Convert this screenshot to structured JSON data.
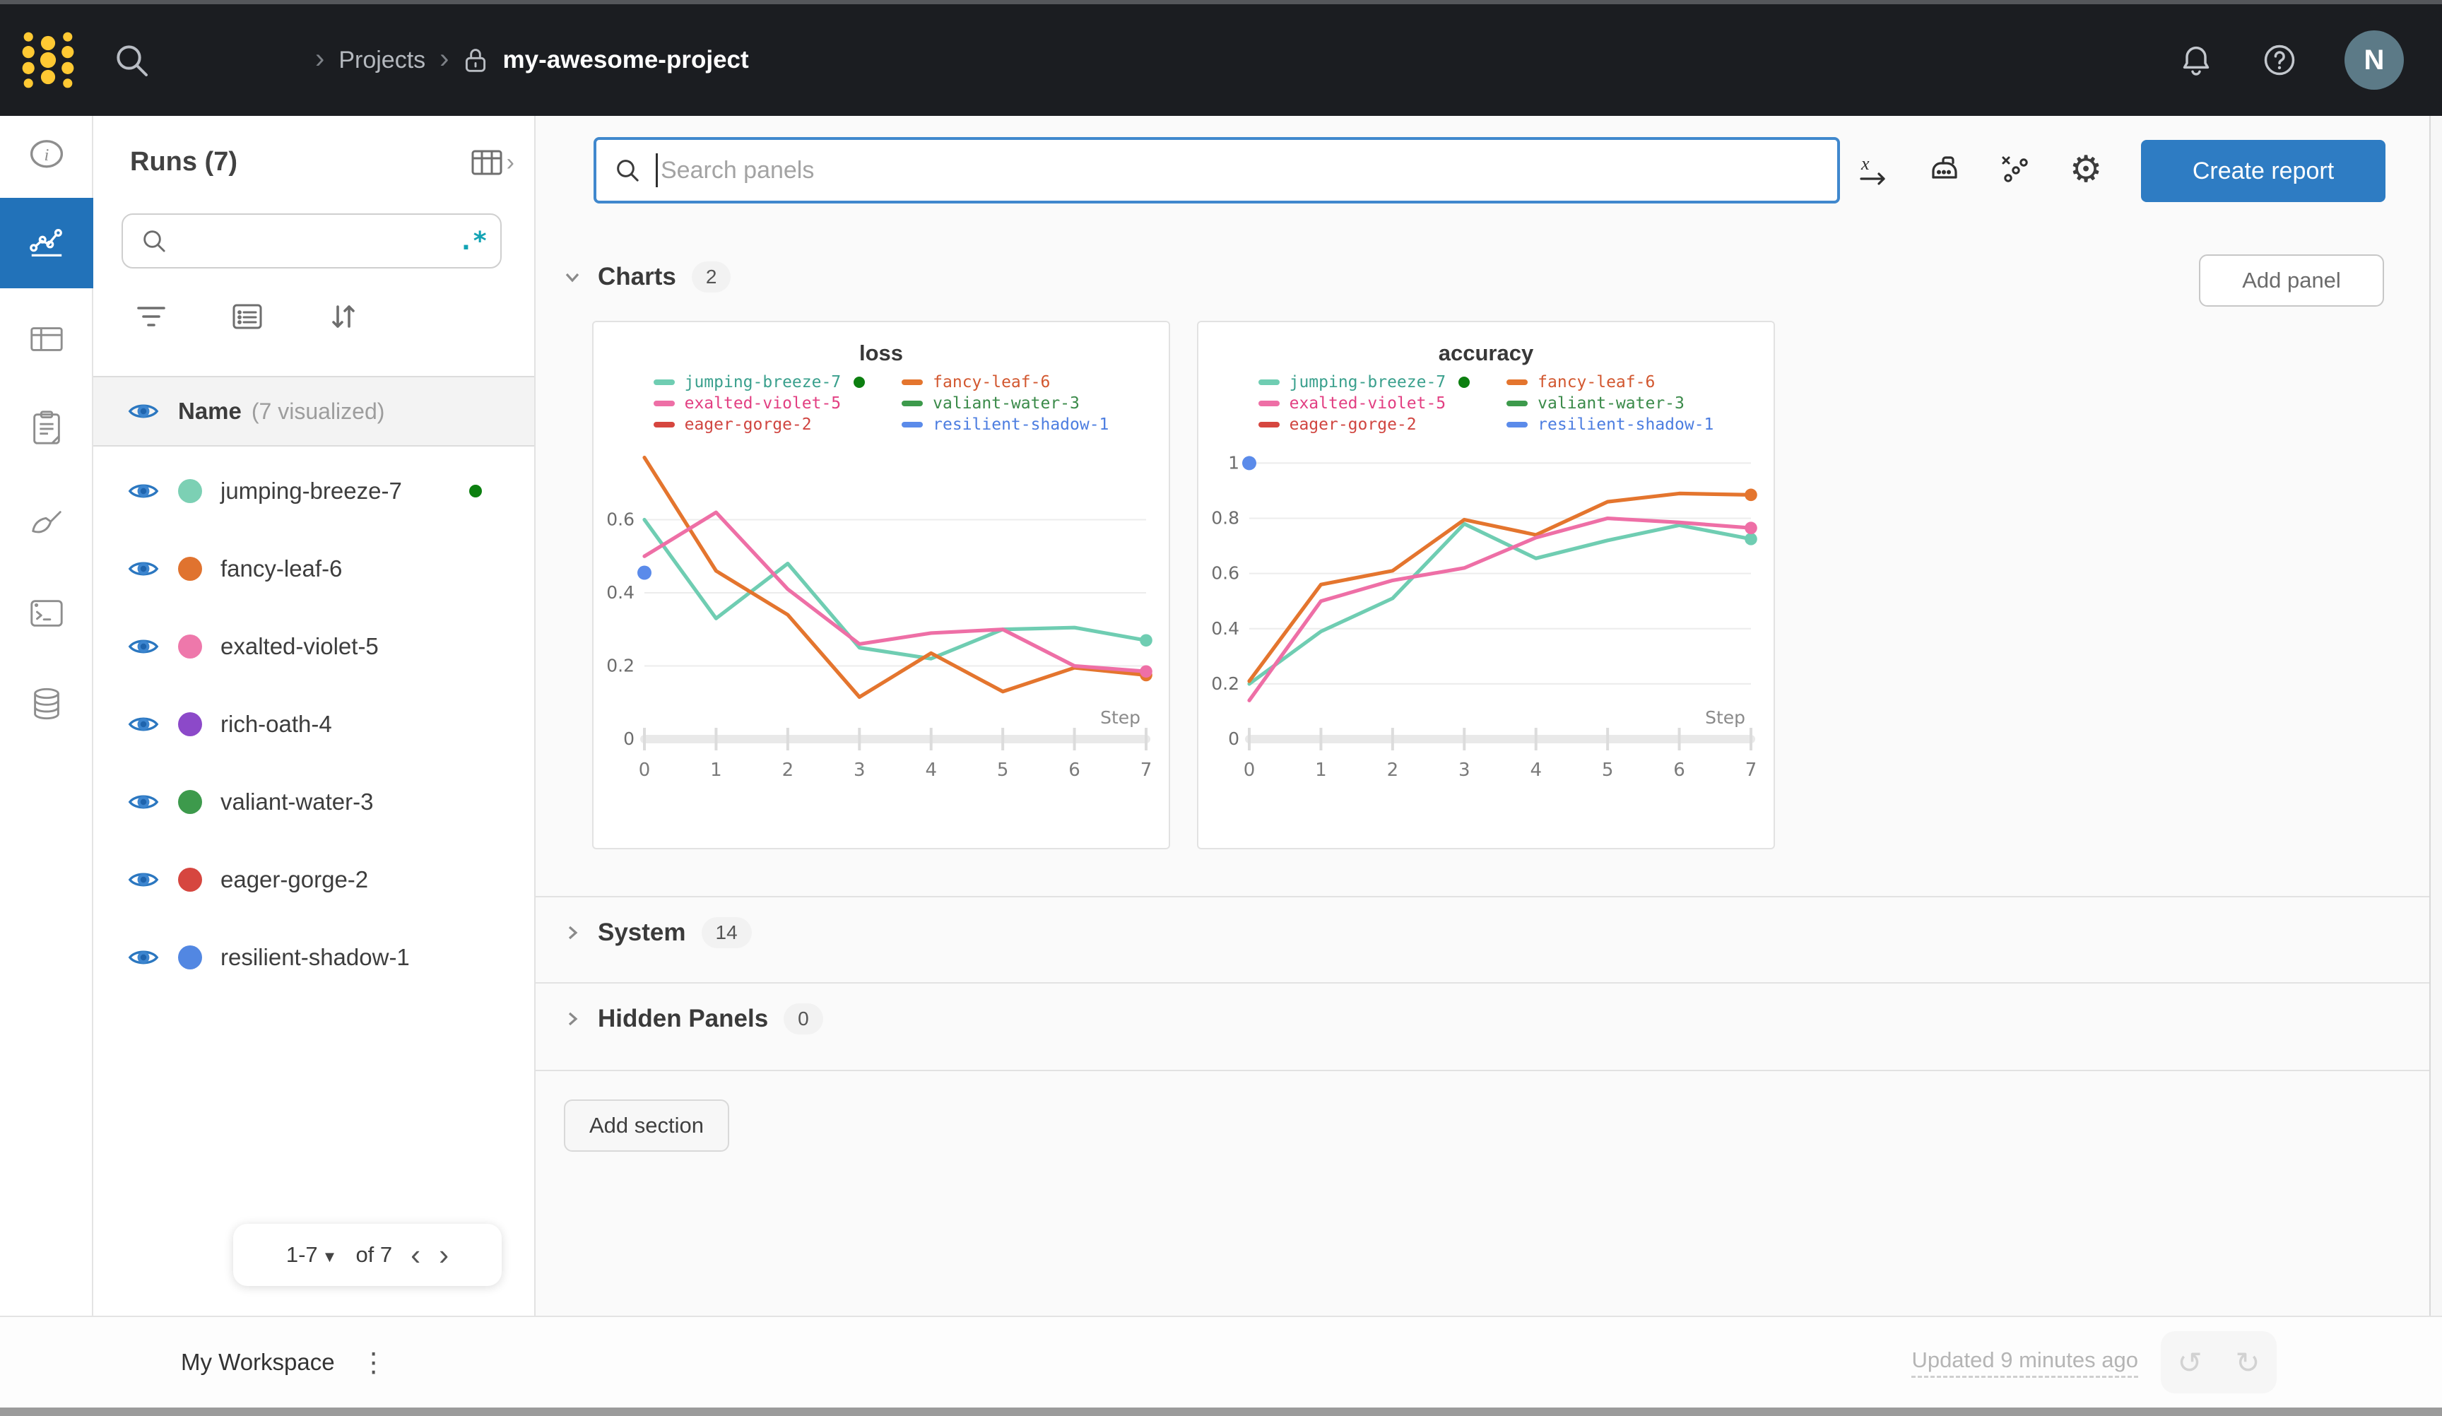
{
  "topbar": {
    "breadcrumb": {
      "projects": "Projects",
      "project": "my-awesome-project"
    },
    "avatar_initial": "N"
  },
  "sidebar": {
    "title": "Runs (7)",
    "name_header": "Name",
    "visualized_label": "(7 visualized)",
    "runs": [
      {
        "name": "jumping-breeze-7",
        "color": "#7cd0b4",
        "running": true
      },
      {
        "name": "fancy-leaf-6",
        "color": "#e0732f",
        "running": false
      },
      {
        "name": "exalted-violet-5",
        "color": "#ee78ab",
        "running": false
      },
      {
        "name": "rich-oath-4",
        "color": "#8c49c9",
        "running": false
      },
      {
        "name": "valiant-water-3",
        "color": "#3d9a4c",
        "running": false
      },
      {
        "name": "eager-gorge-2",
        "color": "#d6463f",
        "running": false
      },
      {
        "name": "resilient-shadow-1",
        "color": "#5287e2",
        "running": false
      }
    ],
    "pagination": {
      "range_label": "1-7",
      "total_label": "of 7",
      "prev": "‹",
      "next": "›"
    }
  },
  "main": {
    "search_placeholder": "Search panels",
    "create_report_label": "Create report",
    "sections": {
      "charts": {
        "label": "Charts",
        "count": "2"
      },
      "system": {
        "label": "System",
        "count": "14"
      },
      "hidden": {
        "label": "Hidden Panels",
        "count": "0"
      }
    },
    "add_panel_label": "Add panel",
    "add_section_label": "Add section"
  },
  "footer": {
    "workspace_label": "My Workspace",
    "updated_label": "Updated 9 minutes ago"
  },
  "colors": {
    "accent_blue": "#2e7cc3",
    "rail_selected": "#2272b9",
    "focus_border": "#4088cd",
    "regex_teal": "#12a3b4",
    "running_green": "#0c7f10",
    "topbar_bg": "#1b1d21",
    "logo_yellow": "#ffc933"
  },
  "chart_data": [
    {
      "type": "line",
      "title": "loss",
      "xlabel": "Step",
      "x": [
        0,
        1,
        2,
        3,
        4,
        5,
        6,
        7
      ],
      "ylim": [
        0,
        0.8
      ],
      "yticks": [
        0,
        0.2,
        0.4,
        0.6
      ],
      "grid": true,
      "legend_position": "top",
      "series": [
        {
          "name": "jumping-breeze-7",
          "color": "#6fcdb2",
          "values": [
            0.6,
            0.33,
            0.48,
            0.25,
            0.22,
            0.3,
            0.305,
            0.27
          ],
          "end_dot": true
        },
        {
          "name": "fancy-leaf-6",
          "color": "#e4752e",
          "values": [
            0.77,
            0.46,
            0.34,
            0.115,
            0.235,
            0.13,
            0.195,
            0.175
          ],
          "end_dot": true
        },
        {
          "name": "exalted-violet-5",
          "color": "#ee6fa6",
          "values": [
            0.5,
            0.62,
            0.41,
            0.26,
            0.29,
            0.3,
            0.2,
            0.185
          ],
          "end_dot": true
        },
        {
          "name": "resilient-shadow-1",
          "color": "#5b8bea",
          "points": [
            [
              0,
              0.455
            ]
          ]
        }
      ],
      "legend": [
        {
          "name": "jumping-breeze-7",
          "swatch": "#6fcdb2",
          "text_color": "#3aa08d",
          "running": true
        },
        {
          "name": "fancy-leaf-6",
          "swatch": "#e4752e",
          "text_color": "#d2572f",
          "running": false
        },
        {
          "name": "exalted-violet-5",
          "swatch": "#ee6fa6",
          "text_color": "#e23f82",
          "running": false
        },
        {
          "name": "valiant-water-3",
          "swatch": "#3d9a4c",
          "text_color": "#3a8a49",
          "running": false
        },
        {
          "name": "eager-gorge-2",
          "swatch": "#d6463f",
          "text_color": "#d04540",
          "running": false
        },
        {
          "name": "resilient-shadow-1",
          "swatch": "#5b8bea",
          "text_color": "#4c7de0",
          "running": false
        }
      ]
    },
    {
      "type": "line",
      "title": "accuracy",
      "xlabel": "Step",
      "x": [
        0,
        1,
        2,
        3,
        4,
        5,
        6,
        7
      ],
      "ylim": [
        0,
        1.06
      ],
      "yticks": [
        0,
        0.2,
        0.4,
        0.6,
        0.8,
        1
      ],
      "grid": true,
      "legend_position": "top",
      "series": [
        {
          "name": "jumping-breeze-7",
          "color": "#6fcdb2",
          "values": [
            0.2,
            0.39,
            0.51,
            0.78,
            0.655,
            0.72,
            0.775,
            0.725
          ],
          "end_dot": true
        },
        {
          "name": "fancy-leaf-6",
          "color": "#e4752e",
          "values": [
            0.21,
            0.56,
            0.61,
            0.795,
            0.74,
            0.86,
            0.89,
            0.885
          ],
          "end_dot": true
        },
        {
          "name": "exalted-violet-5",
          "color": "#ee6fa6",
          "values": [
            0.14,
            0.5,
            0.575,
            0.62,
            0.73,
            0.8,
            0.785,
            0.765
          ],
          "end_dot": true
        },
        {
          "name": "resilient-shadow-1",
          "color": "#5b8bea",
          "points": [
            [
              0,
              1.0
            ]
          ]
        }
      ],
      "legend": [
        {
          "name": "jumping-breeze-7",
          "swatch": "#6fcdb2",
          "text_color": "#3aa08d",
          "running": true
        },
        {
          "name": "fancy-leaf-6",
          "swatch": "#e4752e",
          "text_color": "#d2572f",
          "running": false
        },
        {
          "name": "exalted-violet-5",
          "swatch": "#ee6fa6",
          "text_color": "#e23f82",
          "running": false
        },
        {
          "name": "valiant-water-3",
          "swatch": "#3d9a4c",
          "text_color": "#3a8a49",
          "running": false
        },
        {
          "name": "eager-gorge-2",
          "swatch": "#d6463f",
          "text_color": "#d04540",
          "running": false
        },
        {
          "name": "resilient-shadow-1",
          "swatch": "#5b8bea",
          "text_color": "#4c7de0",
          "running": false
        }
      ]
    }
  ]
}
